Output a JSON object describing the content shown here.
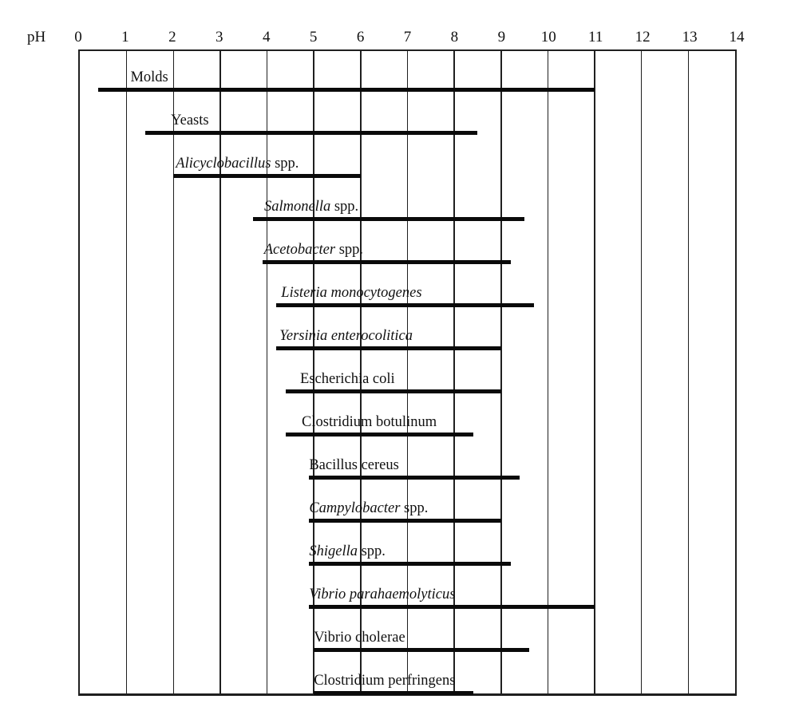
{
  "chart_data": {
    "type": "bar",
    "subtype": "horizontal-range-bars",
    "title": "",
    "xlabel": "pH",
    "ylabel": "",
    "xlim": [
      0,
      14
    ],
    "x_ticks": [
      "0",
      "1",
      "2",
      "3",
      "4",
      "5",
      "6",
      "7",
      "8",
      "9",
      "10",
      "11",
      "12",
      "13",
      "14"
    ],
    "grid": "vertical gridline at each pH unit",
    "legend": "none",
    "series": [
      {
        "name": "Molds",
        "ph_min": 0.4,
        "ph_max": 11.0,
        "label_segments": [
          {
            "text": "Molds",
            "italic": false
          }
        ]
      },
      {
        "name": "Yeasts",
        "ph_min": 1.4,
        "ph_max": 8.5,
        "label_segments": [
          {
            "text": "Yeasts",
            "italic": false
          }
        ]
      },
      {
        "name": "Alicyclobacillus spp.",
        "ph_min": 2.0,
        "ph_max": 6.0,
        "label_segments": [
          {
            "text": "Alicyclobacillus",
            "italic": true
          },
          {
            "text": " spp.",
            "italic": false
          }
        ]
      },
      {
        "name": "Salmonella spp.",
        "ph_min": 3.7,
        "ph_max": 9.5,
        "label_segments": [
          {
            "text": "Salmonella",
            "italic": true
          },
          {
            "text": " spp.",
            "italic": false
          }
        ]
      },
      {
        "name": "Acetobacter spp.",
        "ph_min": 3.9,
        "ph_max": 9.2,
        "label_segments": [
          {
            "text": "Acetobacter",
            "italic": true
          },
          {
            "text": " spp.",
            "italic": false
          }
        ]
      },
      {
        "name": "Listeria monocytogenes",
        "ph_min": 4.2,
        "ph_max": 9.7,
        "label_segments": [
          {
            "text": "Listeria monocytogenes",
            "italic": true
          }
        ]
      },
      {
        "name": "Yersinia enterocolitica",
        "ph_min": 4.2,
        "ph_max": 9.0,
        "label_segments": [
          {
            "text": "Yersinia enterocolitica",
            "italic": true
          }
        ]
      },
      {
        "name": "Escherichia coli",
        "ph_min": 4.4,
        "ph_max": 9.0,
        "label_segments": [
          {
            "text": "Escherichia coli",
            "italic": false
          }
        ]
      },
      {
        "name": "Clostridium botulinum",
        "ph_min": 4.4,
        "ph_max": 8.4,
        "label_segments": [
          {
            "text": "Clostridium botulinum",
            "italic": false
          }
        ]
      },
      {
        "name": "Bacillus cereus",
        "ph_min": 4.9,
        "ph_max": 9.4,
        "label_segments": [
          {
            "text": "Bacillus cereus",
            "italic": false
          }
        ]
      },
      {
        "name": "Campylobacter spp.",
        "ph_min": 4.9,
        "ph_max": 9.0,
        "label_segments": [
          {
            "text": "Campylobacter",
            "italic": true
          },
          {
            "text": " spp.",
            "italic": false
          }
        ]
      },
      {
        "name": "Shigella spp.",
        "ph_min": 4.9,
        "ph_max": 9.2,
        "label_segments": [
          {
            "text": "Shigella",
            "italic": true
          },
          {
            "text": " spp.",
            "italic": false
          }
        ]
      },
      {
        "name": "Vibrio parahaemolyticus",
        "ph_min": 4.9,
        "ph_max": 11.0,
        "label_segments": [
          {
            "text": "Vibrio parahaemolyticus",
            "italic": true
          }
        ]
      },
      {
        "name": "Vibrio cholerae",
        "ph_min": 5.0,
        "ph_max": 9.6,
        "label_segments": [
          {
            "text": "Vibrio cholerae",
            "italic": false
          }
        ]
      },
      {
        "name": "Clostridium perfringens",
        "ph_min": 5.0,
        "ph_max": 8.4,
        "label_segments": [
          {
            "text": "Clostridium perfringens",
            "italic": false
          }
        ]
      }
    ]
  },
  "colors": {
    "background": "#ffffff",
    "text": "#111111",
    "line": "#1f1f1f",
    "bar": "#0a0a0a"
  }
}
